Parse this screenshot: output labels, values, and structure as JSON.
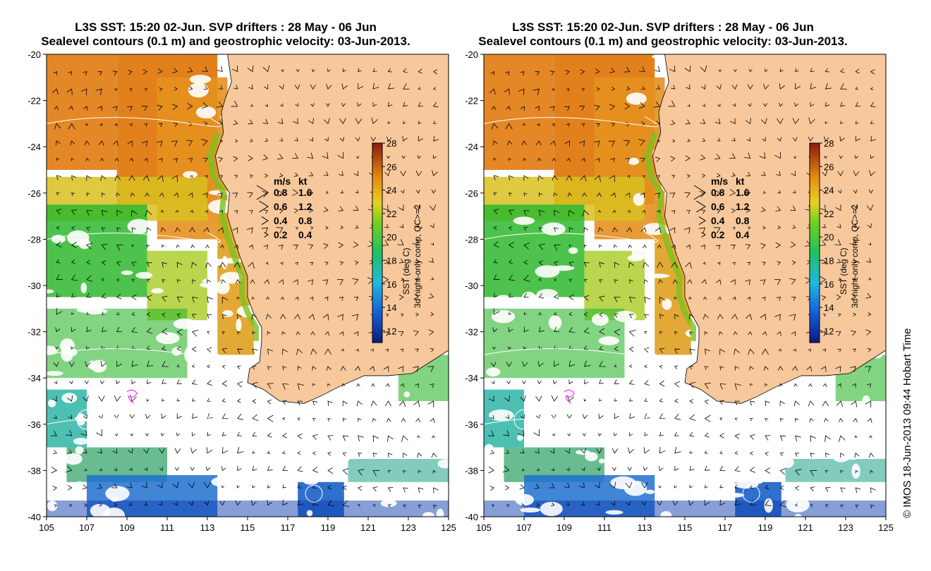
{
  "panels": [
    {
      "title_line1": "L3S SST: 15:20 02-Jun. SVP drifters : 28 May - 06 Jun",
      "title_line2": "Sealevel contours (0.1 m) and geostrophic velocity: 03-Jun-2013."
    },
    {
      "title_line1": "L3S SST: 15:20 02-Jun. SVP drifters : 28 May - 06 Jun",
      "title_line2": "Sealevel contours (0.1 m) and geostrophic velocity: 03-Jun-2013."
    }
  ],
  "axes": {
    "lat_ticks": [
      "-20",
      "-22",
      "-24",
      "-26",
      "-28",
      "-30",
      "-32",
      "-34",
      "-36",
      "-38",
      "-40"
    ],
    "lon_ticks": [
      "105",
      "107",
      "109",
      "111",
      "113",
      "115",
      "117",
      "119",
      "121",
      "123",
      "125"
    ],
    "lat_range": [
      -40,
      -20
    ],
    "lon_range": [
      105,
      125
    ]
  },
  "colorbar": {
    "ticks": [
      "28",
      "26",
      "24",
      "22",
      "20",
      "18",
      "16",
      "14",
      "12"
    ],
    "range": [
      11,
      28
    ],
    "label_line1": "SST (deg C)",
    "label_line2": "3d night-only comp, QC>=2"
  },
  "velocity_legend": {
    "header_ms": "m/s",
    "header_kt": "kt",
    "rows": [
      {
        "ms": "0.8",
        "kt": "1.6"
      },
      {
        "ms": "0.6",
        "kt": "1.2"
      },
      {
        "ms": "0.4",
        "kt": "0.8"
      },
      {
        "ms": "0.2",
        "kt": "0.4"
      }
    ]
  },
  "copyright": "© IMOS 18-Jun-2013 09:44 Hobart Time",
  "colors": {
    "land": "#f7c89b",
    "warm": "#e07a10",
    "mid": "#d8d020",
    "green": "#2eb82e",
    "cool": "#20a0d0",
    "cold": "#1050c0"
  }
}
